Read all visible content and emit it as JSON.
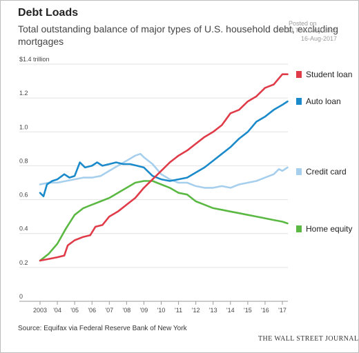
{
  "header": {
    "title": "Debt Loads",
    "subtitle": "Total outstanding balance of major types of U.S. household debt, excluding mortgages"
  },
  "stamp": {
    "posted": "Posted on",
    "source": "WSJ  The Daily Shot",
    "date": "16-Aug-2017"
  },
  "footer": {
    "source": "Source: Equifax via Federal Reserve Bank of New York",
    "publisher": "THE WALL STREET JOURNAL"
  },
  "chart_data": {
    "type": "line",
    "title": "Debt Loads",
    "subtitle": "Total outstanding balance of major types of U.S. household debt, excluding mortgages",
    "ylim": [
      0,
      1.4
    ],
    "xlim": [
      2003,
      2017.4
    ],
    "y_ticks": [
      {
        "value": 0,
        "label": "0"
      },
      {
        "value": 0.2,
        "label": "0.2"
      },
      {
        "value": 0.4,
        "label": "0.4"
      },
      {
        "value": 0.6,
        "label": "0.6"
      },
      {
        "value": 0.8,
        "label": "0.8"
      },
      {
        "value": 1.0,
        "label": "1.0"
      },
      {
        "value": 1.2,
        "label": "1.2"
      },
      {
        "value": 1.4,
        "label": "$1.4 trillion"
      }
    ],
    "x_ticks": [
      {
        "value": 2003,
        "label": "2003"
      },
      {
        "value": 2004,
        "label": "'04"
      },
      {
        "value": 2005,
        "label": "'05"
      },
      {
        "value": 2006,
        "label": "'06"
      },
      {
        "value": 2007,
        "label": "'07"
      },
      {
        "value": 2008,
        "label": "'08"
      },
      {
        "value": 2009,
        "label": "'09"
      },
      {
        "value": 2010,
        "label": "'10"
      },
      {
        "value": 2011,
        "label": "'11"
      },
      {
        "value": 2012,
        "label": "'12"
      },
      {
        "value": 2013,
        "label": "'13"
      },
      {
        "value": 2014,
        "label": "'14"
      },
      {
        "value": 2015,
        "label": "'15"
      },
      {
        "value": 2016,
        "label": "'16"
      },
      {
        "value": 2017,
        "label": "'17"
      }
    ],
    "grid": "horizontal",
    "legend": "right-end labels",
    "series": [
      {
        "name": "Student loan",
        "color": "#e03b48",
        "points": [
          [
            2003.0,
            0.24
          ],
          [
            2003.5,
            0.25
          ],
          [
            2004.0,
            0.26
          ],
          [
            2004.4,
            0.27
          ],
          [
            2004.6,
            0.33
          ],
          [
            2005.0,
            0.36
          ],
          [
            2005.5,
            0.38
          ],
          [
            2005.9,
            0.39
          ],
          [
            2006.2,
            0.44
          ],
          [
            2006.6,
            0.45
          ],
          [
            2007.0,
            0.5
          ],
          [
            2007.5,
            0.53
          ],
          [
            2008.0,
            0.57
          ],
          [
            2008.5,
            0.61
          ],
          [
            2009.0,
            0.67
          ],
          [
            2009.5,
            0.72
          ],
          [
            2010.0,
            0.77
          ],
          [
            2010.5,
            0.82
          ],
          [
            2011.0,
            0.86
          ],
          [
            2011.5,
            0.89
          ],
          [
            2012.0,
            0.93
          ],
          [
            2012.5,
            0.97
          ],
          [
            2013.0,
            1.0
          ],
          [
            2013.5,
            1.04
          ],
          [
            2014.0,
            1.11
          ],
          [
            2014.5,
            1.13
          ],
          [
            2015.0,
            1.18
          ],
          [
            2015.5,
            1.21
          ],
          [
            2016.0,
            1.26
          ],
          [
            2016.5,
            1.28
          ],
          [
            2017.0,
            1.34
          ],
          [
            2017.3,
            1.34
          ]
        ]
      },
      {
        "name": "Auto loan",
        "color": "#1b8acb",
        "points": [
          [
            2003.0,
            0.64
          ],
          [
            2003.2,
            0.62
          ],
          [
            2003.4,
            0.69
          ],
          [
            2003.7,
            0.71
          ],
          [
            2004.0,
            0.72
          ],
          [
            2004.4,
            0.75
          ],
          [
            2004.7,
            0.73
          ],
          [
            2005.0,
            0.74
          ],
          [
            2005.3,
            0.82
          ],
          [
            2005.6,
            0.79
          ],
          [
            2006.0,
            0.8
          ],
          [
            2006.3,
            0.82
          ],
          [
            2006.6,
            0.8
          ],
          [
            2007.0,
            0.81
          ],
          [
            2007.4,
            0.82
          ],
          [
            2007.8,
            0.81
          ],
          [
            2008.2,
            0.81
          ],
          [
            2008.6,
            0.8
          ],
          [
            2009.0,
            0.79
          ],
          [
            2009.5,
            0.74
          ],
          [
            2010.0,
            0.72
          ],
          [
            2010.5,
            0.71
          ],
          [
            2011.0,
            0.72
          ],
          [
            2011.5,
            0.73
          ],
          [
            2012.0,
            0.76
          ],
          [
            2012.5,
            0.79
          ],
          [
            2013.0,
            0.83
          ],
          [
            2013.5,
            0.87
          ],
          [
            2014.0,
            0.91
          ],
          [
            2014.5,
            0.96
          ],
          [
            2015.0,
            1.0
          ],
          [
            2015.5,
            1.06
          ],
          [
            2016.0,
            1.09
          ],
          [
            2016.5,
            1.13
          ],
          [
            2017.0,
            1.16
          ],
          [
            2017.3,
            1.18
          ]
        ]
      },
      {
        "name": "Credit card",
        "color": "#a6cfed",
        "points": [
          [
            2003.0,
            0.69
          ],
          [
            2003.5,
            0.7
          ],
          [
            2004.0,
            0.7
          ],
          [
            2004.5,
            0.71
          ],
          [
            2005.0,
            0.72
          ],
          [
            2005.5,
            0.73
          ],
          [
            2006.0,
            0.73
          ],
          [
            2006.5,
            0.74
          ],
          [
            2007.0,
            0.77
          ],
          [
            2007.5,
            0.8
          ],
          [
            2008.0,
            0.83
          ],
          [
            2008.5,
            0.86
          ],
          [
            2008.8,
            0.87
          ],
          [
            2009.0,
            0.85
          ],
          [
            2009.5,
            0.81
          ],
          [
            2010.0,
            0.75
          ],
          [
            2010.5,
            0.72
          ],
          [
            2011.0,
            0.7
          ],
          [
            2011.5,
            0.7
          ],
          [
            2012.0,
            0.68
          ],
          [
            2012.5,
            0.67
          ],
          [
            2013.0,
            0.67
          ],
          [
            2013.5,
            0.68
          ],
          [
            2014.0,
            0.67
          ],
          [
            2014.5,
            0.69
          ],
          [
            2015.0,
            0.7
          ],
          [
            2015.5,
            0.71
          ],
          [
            2016.0,
            0.73
          ],
          [
            2016.5,
            0.75
          ],
          [
            2016.8,
            0.78
          ],
          [
            2017.0,
            0.77
          ],
          [
            2017.3,
            0.79
          ]
        ]
      },
      {
        "name": "Home equity",
        "color": "#5ab843",
        "points": [
          [
            2003.0,
            0.24
          ],
          [
            2003.5,
            0.28
          ],
          [
            2004.0,
            0.34
          ],
          [
            2004.5,
            0.43
          ],
          [
            2005.0,
            0.51
          ],
          [
            2005.5,
            0.55
          ],
          [
            2006.0,
            0.57
          ],
          [
            2006.5,
            0.59
          ],
          [
            2007.0,
            0.61
          ],
          [
            2007.5,
            0.64
          ],
          [
            2008.0,
            0.67
          ],
          [
            2008.5,
            0.7
          ],
          [
            2009.0,
            0.71
          ],
          [
            2009.5,
            0.71
          ],
          [
            2010.0,
            0.69
          ],
          [
            2010.5,
            0.67
          ],
          [
            2011.0,
            0.64
          ],
          [
            2011.5,
            0.63
          ],
          [
            2012.0,
            0.59
          ],
          [
            2012.5,
            0.57
          ],
          [
            2013.0,
            0.55
          ],
          [
            2013.5,
            0.54
          ],
          [
            2014.0,
            0.53
          ],
          [
            2014.5,
            0.52
          ],
          [
            2015.0,
            0.51
          ],
          [
            2015.5,
            0.5
          ],
          [
            2016.0,
            0.49
          ],
          [
            2016.5,
            0.48
          ],
          [
            2017.0,
            0.47
          ],
          [
            2017.3,
            0.46
          ]
        ]
      }
    ]
  }
}
